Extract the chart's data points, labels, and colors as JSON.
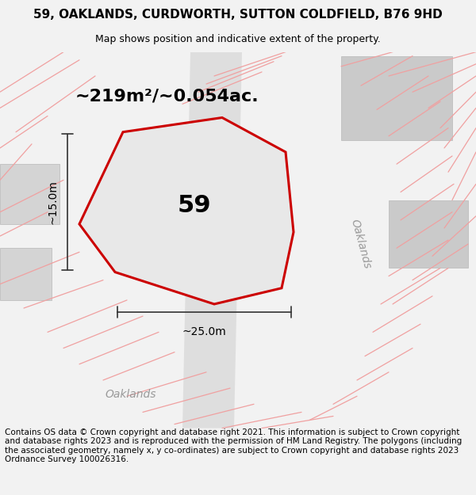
{
  "title_line1": "59, OAKLANDS, CURDWORTH, SUTTON COLDFIELD, B76 9HD",
  "title_line2": "Map shows position and indicative extent of the property.",
  "footer_text": "Contains OS data © Crown copyright and database right 2021. This information is subject to Crown copyright and database rights 2023 and is reproduced with the permission of HM Land Registry. The polygons (including the associated geometry, namely x, y co-ordinates) are subject to Crown copyright and database rights 2023 Ordnance Survey 100026316.",
  "area_label": "~219m²/~0.054ac.",
  "width_label": "~25.0m",
  "height_label": "~15.0m",
  "plot_number": "59",
  "bg_color": "#f2f2f2",
  "map_bg": "#ffffff",
  "plot_outline_color": "#cc0000",
  "pink_line_color": "#f0a0a0",
  "dim_line_color": "#333333",
  "road_label_color": "#999999",
  "text_color": "#000000",
  "title_fontsize": 11,
  "subtitle_fontsize": 9,
  "area_fontsize": 16,
  "plot_label_fontsize": 22,
  "dim_fontsize": 10,
  "footer_fontsize": 7.5,
  "road_label_fontsize": 10,
  "figsize": [
    6.0,
    6.25
  ],
  "dpi": 100
}
